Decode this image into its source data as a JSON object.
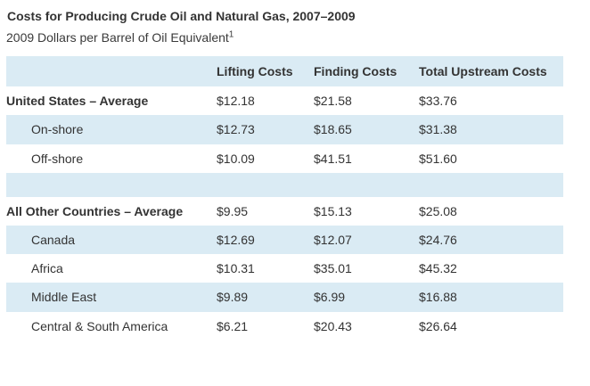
{
  "page": {
    "title": "Costs for Producing Crude Oil and Natural Gas, 2007–2009",
    "subtitle": "2009 Dollars per Barrel of Oil Equivalent",
    "footnote_marker": "1"
  },
  "colors": {
    "row_highlight": "#daebf4",
    "text": "#333333",
    "background": "#ffffff"
  },
  "table": {
    "columns": [
      "",
      "Lifting Costs",
      "Finding Costs",
      "Total Upstream Costs"
    ],
    "rows": [
      {
        "label": "United States – Average",
        "values": [
          "$12.18",
          "$21.58",
          "$33.76"
        ]
      },
      {
        "label": "On-shore",
        "values": [
          "$12.73",
          "$18.65",
          "$31.38"
        ]
      },
      {
        "label": "Off-shore",
        "values": [
          "$10.09",
          "$41.51",
          "$51.60"
        ]
      },
      {
        "label": "All Other Countries – Average",
        "values": [
          "$9.95",
          "$15.13",
          "$25.08"
        ]
      },
      {
        "label": "Canada",
        "values": [
          "$12.69",
          "$12.07",
          "$24.76"
        ]
      },
      {
        "label": "Africa",
        "values": [
          "$10.31",
          "$35.01",
          "$45.32"
        ]
      },
      {
        "label": "Middle East",
        "values": [
          "$9.89",
          "$6.99",
          "$16.88"
        ]
      },
      {
        "label": "Central & South America",
        "values": [
          "$6.21",
          "$20.43",
          "$26.64"
        ]
      }
    ]
  },
  "chart_data": {
    "type": "table",
    "title": "Costs for Producing Crude Oil and Natural Gas, 2007–2009",
    "units": "2009 Dollars per Barrel of Oil Equivalent",
    "footnote_marker": "1",
    "columns": [
      "Lifting Costs",
      "Finding Costs",
      "Total Upstream Costs"
    ],
    "rows": [
      {
        "category": "United States – Average",
        "group": true,
        "values": [
          12.18,
          21.58,
          33.76
        ]
      },
      {
        "category": "On-shore",
        "group": false,
        "parent": "United States",
        "values": [
          12.73,
          18.65,
          31.38
        ]
      },
      {
        "category": "Off-shore",
        "group": false,
        "parent": "United States",
        "values": [
          10.09,
          41.51,
          51.6
        ]
      },
      {
        "category": "All Other Countries – Average",
        "group": true,
        "values": [
          9.95,
          15.13,
          25.08
        ]
      },
      {
        "category": "Canada",
        "group": false,
        "parent": "All Other Countries",
        "values": [
          12.69,
          12.07,
          24.76
        ]
      },
      {
        "category": "Africa",
        "group": false,
        "parent": "All Other Countries",
        "values": [
          10.31,
          35.01,
          45.32
        ]
      },
      {
        "category": "Middle East",
        "group": false,
        "parent": "All Other Countries",
        "values": [
          9.89,
          6.99,
          16.88
        ]
      },
      {
        "category": "Central & South America",
        "group": false,
        "parent": "All Other Countries",
        "values": [
          6.21,
          20.43,
          26.64
        ]
      }
    ]
  }
}
